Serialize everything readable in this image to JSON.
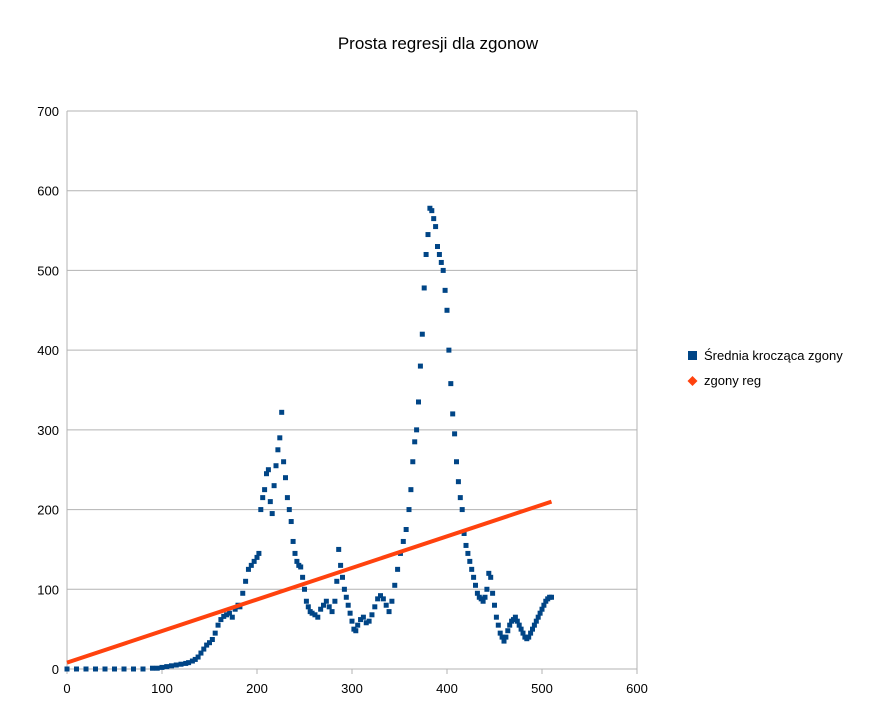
{
  "chart_data": {
    "type": "scatter",
    "title": "Prosta regresji dla zgonow",
    "xlabel": "",
    "ylabel": "",
    "xlim": [
      0,
      600
    ],
    "ylim": [
      0,
      700
    ],
    "x_ticks": [
      0,
      100,
      200,
      300,
      400,
      500,
      600
    ],
    "y_ticks": [
      0,
      100,
      200,
      300,
      400,
      500,
      600,
      700
    ],
    "grid": "horizontal",
    "legend_position": "right",
    "series": [
      {
        "name": "Średnia krocząca zgony",
        "color": "#004586",
        "marker": "square",
        "points": [
          [
            0,
            0
          ],
          [
            10,
            0
          ],
          [
            20,
            0
          ],
          [
            30,
            0
          ],
          [
            40,
            0
          ],
          [
            50,
            0
          ],
          [
            60,
            0
          ],
          [
            70,
            0
          ],
          [
            80,
            0
          ],
          [
            90,
            1
          ],
          [
            95,
            1
          ],
          [
            100,
            2
          ],
          [
            105,
            3
          ],
          [
            110,
            4
          ],
          [
            115,
            5
          ],
          [
            120,
            6
          ],
          [
            125,
            7
          ],
          [
            128,
            8
          ],
          [
            132,
            10
          ],
          [
            135,
            12
          ],
          [
            138,
            15
          ],
          [
            141,
            20
          ],
          [
            144,
            25
          ],
          [
            147,
            30
          ],
          [
            150,
            33
          ],
          [
            153,
            37
          ],
          [
            156,
            45
          ],
          [
            159,
            55
          ],
          [
            162,
            62
          ],
          [
            165,
            66
          ],
          [
            168,
            68
          ],
          [
            171,
            70
          ],
          [
            174,
            65
          ],
          [
            177,
            75
          ],
          [
            180,
            80
          ],
          [
            182,
            78
          ],
          [
            185,
            95
          ],
          [
            188,
            110
          ],
          [
            191,
            125
          ],
          [
            194,
            130
          ],
          [
            197,
            135
          ],
          [
            200,
            140
          ],
          [
            202,
            145
          ],
          [
            204,
            200
          ],
          [
            206,
            215
          ],
          [
            208,
            225
          ],
          [
            210,
            245
          ],
          [
            212,
            250
          ],
          [
            214,
            210
          ],
          [
            216,
            195
          ],
          [
            218,
            230
          ],
          [
            220,
            255
          ],
          [
            222,
            275
          ],
          [
            224,
            290
          ],
          [
            226,
            322
          ],
          [
            228,
            260
          ],
          [
            230,
            240
          ],
          [
            232,
            215
          ],
          [
            234,
            200
          ],
          [
            236,
            185
          ],
          [
            238,
            160
          ],
          [
            240,
            145
          ],
          [
            242,
            135
          ],
          [
            244,
            130
          ],
          [
            246,
            128
          ],
          [
            248,
            115
          ],
          [
            250,
            100
          ],
          [
            252,
            85
          ],
          [
            254,
            78
          ],
          [
            256,
            72
          ],
          [
            258,
            70
          ],
          [
            261,
            68
          ],
          [
            264,
            65
          ],
          [
            267,
            75
          ],
          [
            270,
            80
          ],
          [
            273,
            85
          ],
          [
            276,
            78
          ],
          [
            279,
            72
          ],
          [
            282,
            85
          ],
          [
            284,
            110
          ],
          [
            286,
            150
          ],
          [
            288,
            130
          ],
          [
            290,
            115
          ],
          [
            292,
            100
          ],
          [
            294,
            90
          ],
          [
            296,
            80
          ],
          [
            298,
            70
          ],
          [
            300,
            60
          ],
          [
            302,
            50
          ],
          [
            304,
            48
          ],
          [
            306,
            55
          ],
          [
            309,
            62
          ],
          [
            312,
            65
          ],
          [
            315,
            58
          ],
          [
            318,
            60
          ],
          [
            321,
            68
          ],
          [
            324,
            78
          ],
          [
            327,
            88
          ],
          [
            330,
            92
          ],
          [
            333,
            88
          ],
          [
            336,
            80
          ],
          [
            339,
            72
          ],
          [
            342,
            85
          ],
          [
            345,
            105
          ],
          [
            348,
            125
          ],
          [
            351,
            145
          ],
          [
            354,
            160
          ],
          [
            357,
            175
          ],
          [
            360,
            200
          ],
          [
            362,
            225
          ],
          [
            364,
            260
          ],
          [
            366,
            285
          ],
          [
            368,
            300
          ],
          [
            370,
            335
          ],
          [
            372,
            380
          ],
          [
            374,
            420
          ],
          [
            376,
            478
          ],
          [
            378,
            520
          ],
          [
            380,
            545
          ],
          [
            382,
            578
          ],
          [
            384,
            575
          ],
          [
            386,
            565
          ],
          [
            388,
            555
          ],
          [
            390,
            530
          ],
          [
            392,
            520
          ],
          [
            394,
            510
          ],
          [
            396,
            500
          ],
          [
            398,
            475
          ],
          [
            400,
            450
          ],
          [
            402,
            400
          ],
          [
            404,
            358
          ],
          [
            406,
            320
          ],
          [
            408,
            295
          ],
          [
            410,
            260
          ],
          [
            412,
            235
          ],
          [
            414,
            215
          ],
          [
            416,
            200
          ],
          [
            418,
            170
          ],
          [
            420,
            155
          ],
          [
            422,
            145
          ],
          [
            424,
            135
          ],
          [
            426,
            125
          ],
          [
            428,
            115
          ],
          [
            430,
            105
          ],
          [
            432,
            95
          ],
          [
            434,
            90
          ],
          [
            436,
            88
          ],
          [
            438,
            85
          ],
          [
            440,
            90
          ],
          [
            442,
            100
          ],
          [
            444,
            120
          ],
          [
            446,
            115
          ],
          [
            448,
            95
          ],
          [
            450,
            80
          ],
          [
            452,
            65
          ],
          [
            454,
            55
          ],
          [
            456,
            45
          ],
          [
            458,
            40
          ],
          [
            460,
            35
          ],
          [
            462,
            40
          ],
          [
            464,
            48
          ],
          [
            466,
            55
          ],
          [
            468,
            60
          ],
          [
            470,
            62
          ],
          [
            472,
            65
          ],
          [
            474,
            60
          ],
          [
            476,
            55
          ],
          [
            478,
            50
          ],
          [
            480,
            45
          ],
          [
            482,
            40
          ],
          [
            484,
            38
          ],
          [
            486,
            40
          ],
          [
            488,
            45
          ],
          [
            490,
            50
          ],
          [
            492,
            55
          ],
          [
            494,
            60
          ],
          [
            496,
            65
          ],
          [
            498,
            70
          ],
          [
            500,
            75
          ],
          [
            502,
            80
          ],
          [
            504,
            85
          ],
          [
            506,
            88
          ],
          [
            508,
            90
          ],
          [
            510,
            90
          ]
        ]
      },
      {
        "name": "zgony reg",
        "color": "#ff420e",
        "marker": "diamond",
        "line": [
          [
            0,
            8
          ],
          [
            510,
            210
          ]
        ]
      }
    ]
  }
}
